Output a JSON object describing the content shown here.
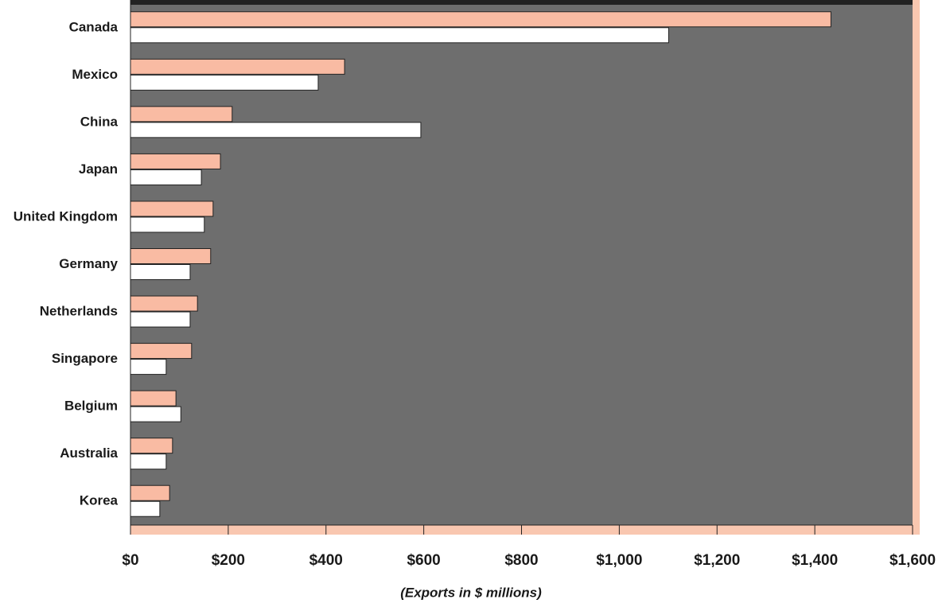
{
  "chart_data": {
    "type": "bar",
    "orientation": "horizontal",
    "x_label": "(Exports in $ millions)",
    "categories": [
      "Canada",
      "Mexico",
      "China",
      "Japan",
      "United Kingdom",
      "Germany",
      "Netherlands",
      "Singapore",
      "Belgium",
      "Australia",
      "Korea"
    ],
    "series": [
      {
        "color": "#f9bba3",
        "values": [
          1433,
          438,
          208,
          184,
          169,
          164,
          137,
          125,
          93,
          86,
          80
        ]
      },
      {
        "color": "#ffffff",
        "values": [
          1101,
          384,
          594,
          145,
          151,
          122,
          122,
          73,
          103,
          73,
          60
        ]
      }
    ],
    "xlim": [
      0,
      1600
    ],
    "xticks": [
      {
        "value": 0,
        "label": "$0"
      },
      {
        "value": 200,
        "label": "$200"
      },
      {
        "value": 400,
        "label": "$400"
      },
      {
        "value": 600,
        "label": "$600"
      },
      {
        "value": 800,
        "label": "$800"
      },
      {
        "value": 1000,
        "label": "$1,000"
      },
      {
        "value": 1200,
        "label": "$1,200"
      },
      {
        "value": 1400,
        "label": "$1,400"
      },
      {
        "value": 1600,
        "label": "$1,600"
      }
    ]
  }
}
